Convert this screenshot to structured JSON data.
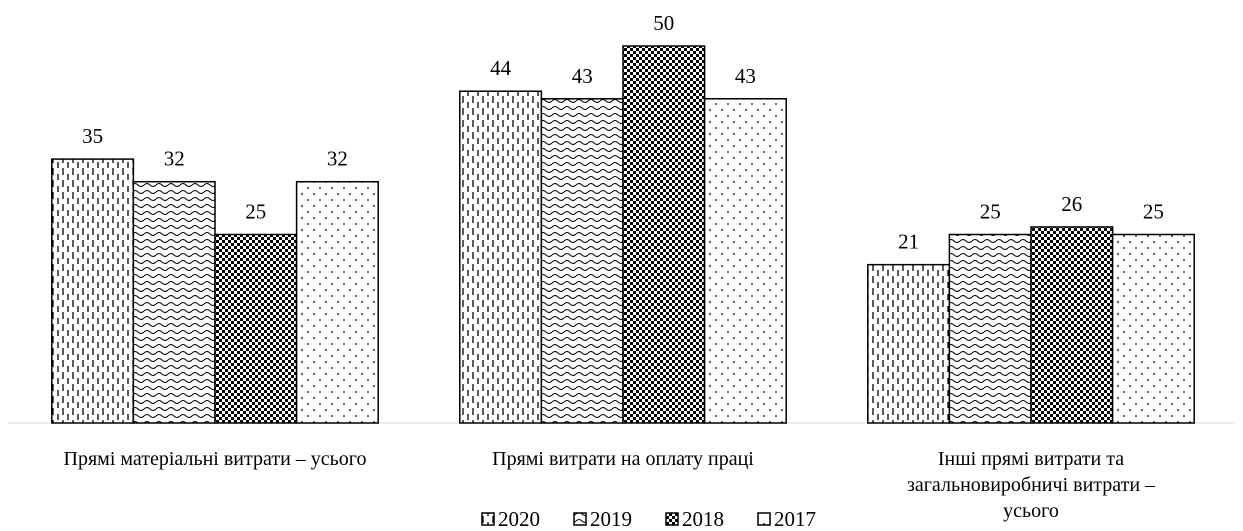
{
  "chart_data": {
    "type": "bar",
    "categories": [
      "Прямі матеріальні витрати – усього",
      "Прямі витрати на оплату праці",
      "Інші прямі витрати та загальновиробничі витрати – усього"
    ],
    "series": [
      {
        "name": "2020",
        "values": [
          35,
          44,
          21
        ]
      },
      {
        "name": "2019",
        "values": [
          32,
          43,
          25
        ]
      },
      {
        "name": "2018",
        "values": [
          25,
          50,
          26
        ]
      },
      {
        "name": "2017",
        "values": [
          32,
          43,
          25
        ]
      }
    ],
    "ylim": [
      0,
      50
    ]
  }
}
